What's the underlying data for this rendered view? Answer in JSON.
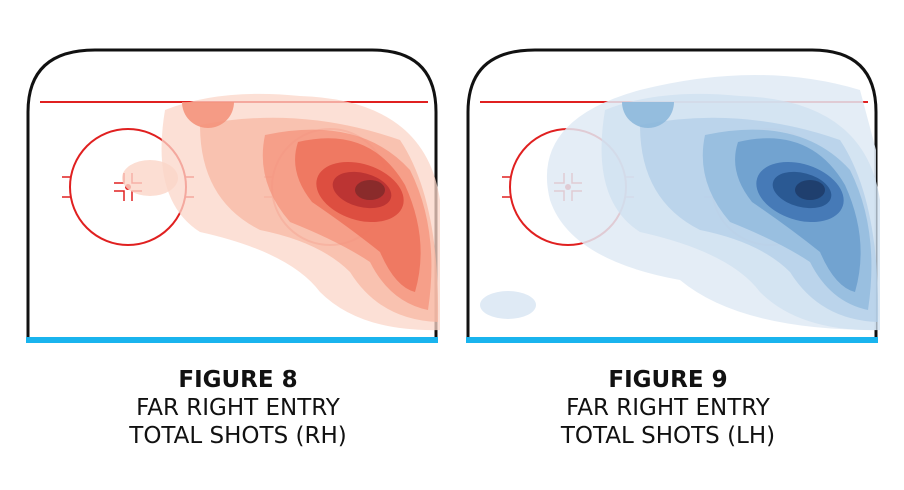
{
  "figures": [
    {
      "label": "FIGURE 8",
      "line1": "FAR RIGHT ENTRY",
      "line2": "TOTAL SHOTS (RH)"
    },
    {
      "label": "FIGURE 9",
      "line1": "FAR RIGHT ENTRY",
      "line2": "TOTAL SHOTS (LH)"
    }
  ]
}
